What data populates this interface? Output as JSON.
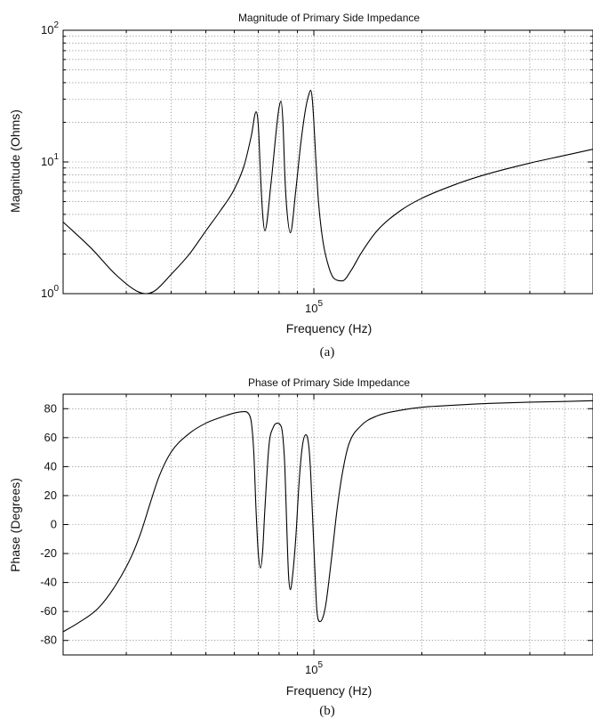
{
  "chart_data": [
    {
      "type": "line",
      "title": "Magnitude of Primary Side Impedance",
      "xlabel": "Frequency (Hz)",
      "ylabel": "Magnitude (Ohms)",
      "caption": "(a)",
      "x_scale": "log",
      "y_scale": "log",
      "xlim": [
        20000,
        600000
      ],
      "ylim": [
        1,
        100
      ],
      "x_major_ticks": [
        {
          "value": 100000,
          "base": "10",
          "exp": "5"
        }
      ],
      "y_major_ticks": [
        {
          "value": 1,
          "base": "10",
          "exp": "0"
        },
        {
          "value": 10,
          "base": "10",
          "exp": "1"
        },
        {
          "value": 100,
          "base": "10",
          "exp": "2"
        }
      ],
      "grid": true,
      "series": [
        {
          "x": [
            20000,
            24000,
            28000,
            32000,
            34000,
            36000,
            40000,
            45000,
            50000,
            55000,
            60000,
            64000,
            67000,
            69000,
            70000,
            71000,
            72000,
            73000,
            76000,
            79000,
            80000,
            81000,
            82000,
            83000,
            84000,
            86000,
            89000,
            92000,
            95000,
            97000,
            98000,
            99000,
            100000,
            101000,
            103000,
            106000,
            110000,
            114000,
            120000,
            127000,
            135000,
            150000,
            175000,
            200000,
            250000,
            300000,
            400000,
            500000,
            600000
          ],
          "y": [
            3.5,
            2.2,
            1.4,
            1.05,
            1.0,
            1.05,
            1.4,
            2.0,
            3.0,
            4.3,
            6.2,
            9.5,
            16,
            24,
            19,
            8,
            4,
            3.0,
            7,
            20,
            26,
            29,
            20,
            8,
            4.5,
            2.9,
            6,
            14,
            26,
            33,
            35,
            30,
            20,
            12,
            5,
            2.5,
            1.6,
            1.3,
            1.25,
            1.5,
            2.0,
            3.0,
            4.3,
            5.3,
            6.8,
            8.0,
            9.8,
            11.2,
            12.5
          ]
        }
      ]
    },
    {
      "type": "line",
      "title": "Phase of Primary Side Impedance",
      "xlabel": "Frequency (Hz)",
      "ylabel": "Phase (Degrees)",
      "caption": "(b)",
      "x_scale": "log",
      "y_scale": "linear",
      "xlim": [
        20000,
        600000
      ],
      "ylim": [
        -90,
        90
      ],
      "x_major_ticks": [
        {
          "value": 100000,
          "base": "10",
          "exp": "5"
        }
      ],
      "y_ticks": [
        80,
        60,
        40,
        20,
        0,
        -20,
        -40,
        -60,
        -80
      ],
      "grid": true,
      "series": [
        {
          "x": [
            20000,
            22000,
            25000,
            28000,
            31000,
            33000,
            35000,
            37000,
            40000,
            45000,
            50000,
            55000,
            60000,
            64000,
            66000,
            67000,
            68000,
            69000,
            70000,
            71000,
            72000,
            73000,
            75000,
            77000,
            79000,
            81000,
            82000,
            83000,
            84000,
            85000,
            86000,
            87000,
            89000,
            91000,
            93000,
            95000,
            96000,
            97000,
            98000,
            99000,
            100000,
            101000,
            102000,
            104000,
            106000,
            108000,
            110000,
            113000,
            116000,
            120000,
            125000,
            135000,
            150000,
            175000,
            200000,
            250000,
            300000,
            400000,
            500000,
            600000
          ],
          "y": [
            -74,
            -68,
            -58,
            -42,
            -22,
            -5,
            15,
            33,
            50,
            63,
            70,
            74,
            77,
            78,
            76,
            70,
            50,
            10,
            -20,
            -30,
            -18,
            10,
            55,
            67,
            70,
            68,
            60,
            40,
            0,
            -35,
            -45,
            -38,
            -10,
            30,
            55,
            62,
            60,
            52,
            35,
            10,
            -15,
            -40,
            -60,
            -67,
            -64,
            -55,
            -40,
            -15,
            10,
            35,
            55,
            68,
            75,
            79,
            81,
            82.5,
            83.5,
            84.5,
            85,
            85.5
          ]
        }
      ]
    }
  ]
}
